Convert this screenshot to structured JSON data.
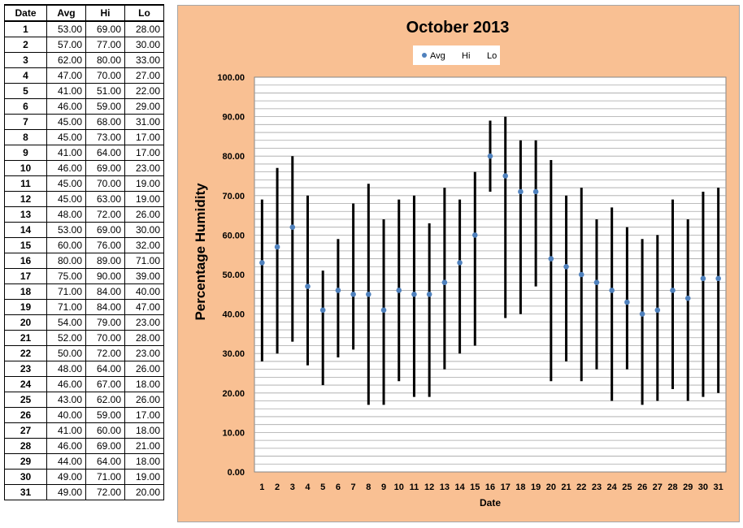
{
  "table": {
    "headers": [
      "Date",
      "Avg",
      "Hi",
      "Lo"
    ],
    "rows": [
      [
        "1",
        "53.00",
        "69.00",
        "28.00"
      ],
      [
        "2",
        "57.00",
        "77.00",
        "30.00"
      ],
      [
        "3",
        "62.00",
        "80.00",
        "33.00"
      ],
      [
        "4",
        "47.00",
        "70.00",
        "27.00"
      ],
      [
        "5",
        "41.00",
        "51.00",
        "22.00"
      ],
      [
        "6",
        "46.00",
        "59.00",
        "29.00"
      ],
      [
        "7",
        "45.00",
        "68.00",
        "31.00"
      ],
      [
        "8",
        "45.00",
        "73.00",
        "17.00"
      ],
      [
        "9",
        "41.00",
        "64.00",
        "17.00"
      ],
      [
        "10",
        "46.00",
        "69.00",
        "23.00"
      ],
      [
        "11",
        "45.00",
        "70.00",
        "19.00"
      ],
      [
        "12",
        "45.00",
        "63.00",
        "19.00"
      ],
      [
        "13",
        "48.00",
        "72.00",
        "26.00"
      ],
      [
        "14",
        "53.00",
        "69.00",
        "30.00"
      ],
      [
        "15",
        "60.00",
        "76.00",
        "32.00"
      ],
      [
        "16",
        "80.00",
        "89.00",
        "71.00"
      ],
      [
        "17",
        "75.00",
        "90.00",
        "39.00"
      ],
      [
        "18",
        "71.00",
        "84.00",
        "40.00"
      ],
      [
        "19",
        "71.00",
        "84.00",
        "47.00"
      ],
      [
        "20",
        "54.00",
        "79.00",
        "23.00"
      ],
      [
        "21",
        "52.00",
        "70.00",
        "28.00"
      ],
      [
        "22",
        "50.00",
        "72.00",
        "23.00"
      ],
      [
        "23",
        "48.00",
        "64.00",
        "26.00"
      ],
      [
        "24",
        "46.00",
        "67.00",
        "18.00"
      ],
      [
        "25",
        "43.00",
        "62.00",
        "26.00"
      ],
      [
        "26",
        "40.00",
        "59.00",
        "17.00"
      ],
      [
        "27",
        "41.00",
        "60.00",
        "18.00"
      ],
      [
        "28",
        "46.00",
        "69.00",
        "21.00"
      ],
      [
        "29",
        "44.00",
        "64.00",
        "18.00"
      ],
      [
        "30",
        "49.00",
        "71.00",
        "19.00"
      ],
      [
        "31",
        "49.00",
        "72.00",
        "20.00"
      ]
    ]
  },
  "chart_data": {
    "type": "scatter",
    "title": "October 2013",
    "xlabel": "Date",
    "ylabel": "Percentage Humidity",
    "ylim": [
      0,
      100
    ],
    "y_ticks": [
      "0.00",
      "10.00",
      "20.00",
      "30.00",
      "40.00",
      "50.00",
      "60.00",
      "70.00",
      "80.00",
      "90.00",
      "100.00"
    ],
    "x": [
      1,
      2,
      3,
      4,
      5,
      6,
      7,
      8,
      9,
      10,
      11,
      12,
      13,
      14,
      15,
      16,
      17,
      18,
      19,
      20,
      21,
      22,
      23,
      24,
      25,
      26,
      27,
      28,
      29,
      30,
      31
    ],
    "series": [
      {
        "name": "Avg",
        "values": [
          53,
          57,
          62,
          47,
          41,
          46,
          45,
          45,
          41,
          46,
          45,
          45,
          48,
          53,
          60,
          80,
          75,
          71,
          71,
          54,
          52,
          50,
          48,
          46,
          43,
          40,
          41,
          46,
          44,
          49,
          49
        ]
      },
      {
        "name": "Hi",
        "values": [
          69,
          77,
          80,
          70,
          51,
          59,
          68,
          73,
          64,
          69,
          70,
          63,
          72,
          69,
          76,
          89,
          90,
          84,
          84,
          79,
          70,
          72,
          64,
          67,
          62,
          59,
          60,
          69,
          64,
          71,
          72
        ]
      },
      {
        "name": "Lo",
        "values": [
          28,
          30,
          33,
          27,
          22,
          29,
          31,
          17,
          17,
          23,
          19,
          19,
          26,
          30,
          32,
          71,
          39,
          40,
          47,
          23,
          28,
          23,
          26,
          18,
          26,
          17,
          18,
          21,
          18,
          19,
          20
        ]
      }
    ],
    "grid": true,
    "legend_position": "top-center",
    "colors": {
      "avg_marker": "#4f81bd",
      "hi_lo_line": "#000000",
      "plot_background": "#ffffff",
      "chart_background": "#f9c093"
    }
  }
}
